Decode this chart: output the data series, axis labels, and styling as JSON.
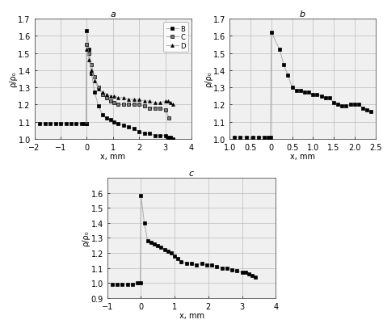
{
  "subplot_a": {
    "title": "a",
    "xlabel": "x, mm",
    "ylabel": "ρ/ρ₀",
    "xlim": [
      -2,
      4
    ],
    "ylim": [
      1.0,
      1.7
    ],
    "yticks": [
      1.0,
      1.1,
      1.2,
      1.3,
      1.4,
      1.5,
      1.6,
      1.7
    ],
    "xticks": [
      -2,
      -1,
      0,
      1,
      2,
      3,
      4
    ],
    "series_B_x": [
      -1.8,
      -1.6,
      -1.4,
      -1.2,
      -1.0,
      -0.8,
      -0.6,
      -0.4,
      -0.2,
      -0.1,
      -0.02,
      0.0,
      0.08,
      0.18,
      0.3,
      0.45,
      0.6,
      0.75,
      0.9,
      1.05,
      1.2,
      1.4,
      1.6,
      1.8,
      2.0,
      2.2,
      2.4,
      2.6,
      2.8,
      3.0,
      3.1,
      3.2,
      3.3
    ],
    "series_B_y": [
      1.09,
      1.09,
      1.09,
      1.09,
      1.09,
      1.09,
      1.09,
      1.09,
      1.09,
      1.09,
      1.09,
      1.63,
      1.52,
      1.38,
      1.27,
      1.19,
      1.14,
      1.12,
      1.11,
      1.1,
      1.09,
      1.08,
      1.07,
      1.06,
      1.04,
      1.03,
      1.03,
      1.02,
      1.02,
      1.02,
      1.01,
      1.01,
      1.0
    ],
    "series_C_x": [
      -0.02,
      0.0,
      0.08,
      0.18,
      0.3,
      0.45,
      0.6,
      0.75,
      0.9,
      1.05,
      1.2,
      1.4,
      1.6,
      1.8,
      2.0,
      2.2,
      2.4,
      2.6,
      2.8,
      3.0,
      3.15
    ],
    "series_C_y": [
      1.09,
      1.55,
      1.5,
      1.43,
      1.36,
      1.3,
      1.26,
      1.24,
      1.22,
      1.21,
      1.2,
      1.2,
      1.2,
      1.2,
      1.2,
      1.19,
      1.18,
      1.18,
      1.18,
      1.17,
      1.12
    ],
    "series_D_x": [
      -0.02,
      0.0,
      0.08,
      0.18,
      0.3,
      0.45,
      0.6,
      0.75,
      0.9,
      1.05,
      1.2,
      1.4,
      1.6,
      1.8,
      2.0,
      2.2,
      2.4,
      2.6,
      2.8,
      3.0,
      3.1,
      3.2,
      3.3
    ],
    "series_D_y": [
      1.09,
      1.52,
      1.46,
      1.4,
      1.34,
      1.29,
      1.27,
      1.26,
      1.25,
      1.25,
      1.24,
      1.24,
      1.23,
      1.23,
      1.23,
      1.22,
      1.22,
      1.21,
      1.21,
      1.22,
      1.22,
      1.21,
      1.2
    ]
  },
  "subplot_b": {
    "title": "b",
    "xlabel": "x, mm",
    "ylabel": "ρ/ρ₀",
    "xlim": [
      -1.0,
      2.5
    ],
    "ylim": [
      1.0,
      1.7
    ],
    "yticks": [
      1.0,
      1.1,
      1.2,
      1.3,
      1.4,
      1.5,
      1.6,
      1.7
    ],
    "xtick_vals": [
      -1.0,
      -0.5,
      0.0,
      0.5,
      1.0,
      1.5,
      2.0,
      2.5
    ],
    "xtick_labels": [
      "1.0",
      "0.5",
      "0",
      "0.5",
      "1.0",
      "1.5",
      "2.0",
      "2.5"
    ],
    "series_x": [
      -0.9,
      -0.75,
      -0.6,
      -0.45,
      -0.3,
      -0.18,
      -0.08,
      -0.02,
      0.0,
      0.2,
      0.3,
      0.4,
      0.5,
      0.6,
      0.7,
      0.8,
      0.9,
      1.0,
      1.1,
      1.2,
      1.3,
      1.4,
      1.5,
      1.6,
      1.7,
      1.8,
      1.9,
      2.0,
      2.1,
      2.2,
      2.3,
      2.4
    ],
    "series_y": [
      1.01,
      1.01,
      1.01,
      1.01,
      1.01,
      1.01,
      1.01,
      1.01,
      1.62,
      1.52,
      1.43,
      1.37,
      1.3,
      1.28,
      1.28,
      1.27,
      1.27,
      1.26,
      1.26,
      1.25,
      1.24,
      1.24,
      1.21,
      1.2,
      1.19,
      1.19,
      1.2,
      1.2,
      1.2,
      1.18,
      1.17,
      1.16
    ]
  },
  "subplot_c": {
    "title": "c",
    "xlabel": "x, mm",
    "ylabel": "ρ/ρ₀",
    "xlim": [
      -1,
      4
    ],
    "ylim": [
      0.9,
      1.7
    ],
    "yticks": [
      0.9,
      1.0,
      1.1,
      1.2,
      1.3,
      1.4,
      1.5,
      1.6
    ],
    "xticks": [
      -1,
      0,
      1,
      2,
      3,
      4
    ],
    "series_x": [
      -0.85,
      -0.7,
      -0.55,
      -0.4,
      -0.25,
      -0.1,
      -0.02,
      0.0,
      0.1,
      0.2,
      0.3,
      0.4,
      0.5,
      0.6,
      0.7,
      0.8,
      0.9,
      1.0,
      1.1,
      1.2,
      1.35,
      1.5,
      1.65,
      1.8,
      1.95,
      2.1,
      2.25,
      2.4,
      2.55,
      2.7,
      2.85,
      3.0,
      3.1,
      3.2,
      3.3,
      3.4
    ],
    "series_y": [
      0.99,
      0.99,
      0.99,
      0.99,
      0.99,
      1.0,
      1.0,
      1.58,
      1.4,
      1.28,
      1.27,
      1.26,
      1.25,
      1.24,
      1.22,
      1.21,
      1.2,
      1.18,
      1.16,
      1.14,
      1.13,
      1.13,
      1.12,
      1.13,
      1.12,
      1.12,
      1.11,
      1.1,
      1.1,
      1.09,
      1.08,
      1.07,
      1.07,
      1.06,
      1.05,
      1.04
    ]
  },
  "line_color": "#aaaaaa",
  "marker_color": "#000000",
  "bg_color": "#f0f0f0",
  "title_fontsize": 8,
  "tick_fontsize": 7,
  "label_fontsize": 7
}
